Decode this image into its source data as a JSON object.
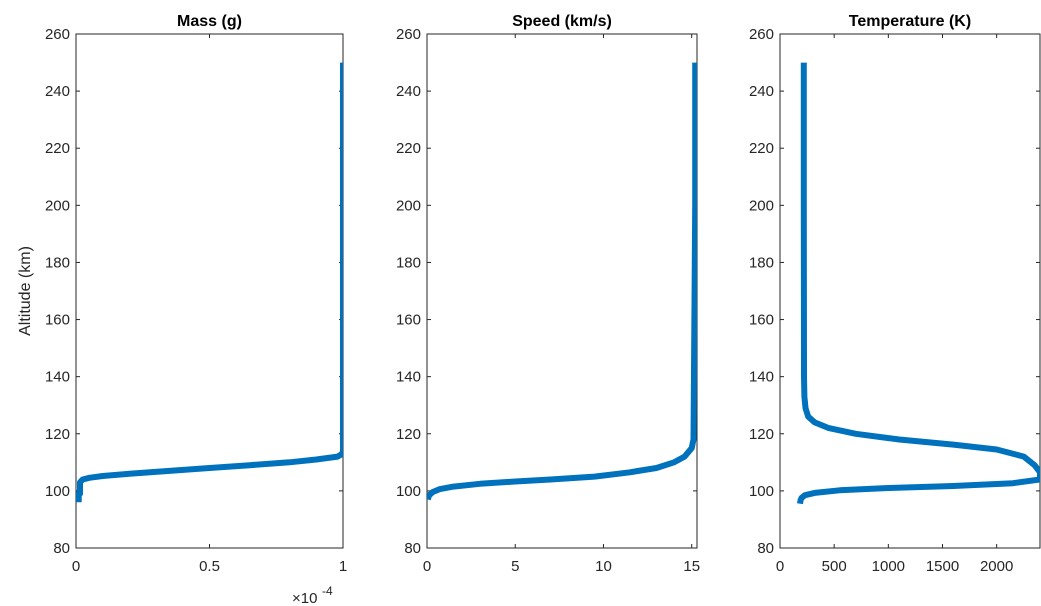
{
  "figure": {
    "ylabel": "Altitude (km)",
    "mass_exponent": "×10",
    "mass_exponent_power": "-4",
    "line_color": "#0072BD",
    "axis_color": "#262626"
  },
  "chart_data": [
    {
      "type": "line",
      "title": "Mass (g)",
      "xlabel": "",
      "ylabel": "Altitude (km)",
      "xlim": [
        0,
        1
      ],
      "ylim": [
        80,
        260
      ],
      "x_scale_note": "×10^-4",
      "xticks": [
        0,
        0.5,
        1
      ],
      "xtick_labels": [
        "0",
        "0.5",
        "1"
      ],
      "yticks": [
        80,
        100,
        120,
        140,
        160,
        180,
        200,
        220,
        240,
        260
      ],
      "ytick_labels": [
        "80",
        "100",
        "120",
        "140",
        "160",
        "180",
        "200",
        "220",
        "240",
        "260"
      ],
      "grid": false,
      "series": [
        {
          "x": [
            1,
            1,
            1,
            0.997,
            0.98,
            0.9,
            0.8,
            0.65,
            0.5,
            0.35,
            0.2,
            0.1,
            0.05,
            0.025,
            0.02,
            0.015,
            0.015,
            0.01,
            0.01
          ],
          "y": [
            250,
            200,
            114,
            113,
            112,
            111,
            110,
            109,
            108,
            107,
            106,
            105.2,
            104.6,
            104,
            103.5,
            103,
            99,
            99,
            96
          ]
        }
      ]
    },
    {
      "type": "line",
      "title": "Speed (km/s)",
      "xlabel": "",
      "ylabel": "",
      "xlim": [
        0,
        15.3
      ],
      "ylim": [
        80,
        260
      ],
      "xticks": [
        0,
        5,
        10,
        15
      ],
      "xtick_labels": [
        "0",
        "5",
        "10",
        "15"
      ],
      "yticks": [
        80,
        100,
        120,
        140,
        160,
        180,
        200,
        220,
        240,
        260
      ],
      "ytick_labels": [
        "80",
        "100",
        "120",
        "140",
        "160",
        "180",
        "200",
        "220",
        "240",
        "260"
      ],
      "grid": false,
      "series": [
        {
          "x": [
            15.2,
            15.2,
            15.1,
            15.0,
            14.6,
            14.0,
            13.0,
            11.5,
            9.5,
            7.0,
            5.0,
            3.0,
            1.5,
            0.7,
            0.3,
            0.1,
            0.05
          ],
          "y": [
            250,
            200,
            118,
            115,
            112,
            110,
            108,
            106.5,
            105,
            104,
            103.3,
            102.5,
            101.5,
            100.6,
            99.5,
            98.3,
            97
          ]
        }
      ]
    },
    {
      "type": "line",
      "title": "Temperature (K)",
      "xlabel": "",
      "ylabel": "",
      "xlim": [
        0,
        2400
      ],
      "ylim": [
        80,
        260
      ],
      "xticks": [
        0,
        500,
        1000,
        1500,
        2000
      ],
      "xtick_labels": [
        "0",
        "500",
        "1000",
        "1500",
        "2000"
      ],
      "yticks": [
        80,
        100,
        120,
        140,
        160,
        180,
        200,
        220,
        240,
        260
      ],
      "ytick_labels": [
        "80",
        "100",
        "120",
        "140",
        "160",
        "180",
        "200",
        "220",
        "240",
        "260"
      ],
      "grid": false,
      "series": [
        {
          "x": [
            220,
            220,
            222,
            225,
            235,
            260,
            320,
            450,
            700,
            1100,
            1600,
            2000,
            2250,
            2350,
            2400,
            2400,
            2150,
            1600,
            1000,
            550,
            320,
            230,
            200,
            190,
            185
          ],
          "y": [
            250,
            200,
            140,
            133,
            129,
            126,
            124,
            122,
            120,
            118,
            116.2,
            114.5,
            112,
            109,
            106.5,
            104,
            102.7,
            101.7,
            101,
            100.2,
            99.3,
            98.5,
            97.6,
            96.8,
            95.5
          ]
        }
      ]
    }
  ]
}
